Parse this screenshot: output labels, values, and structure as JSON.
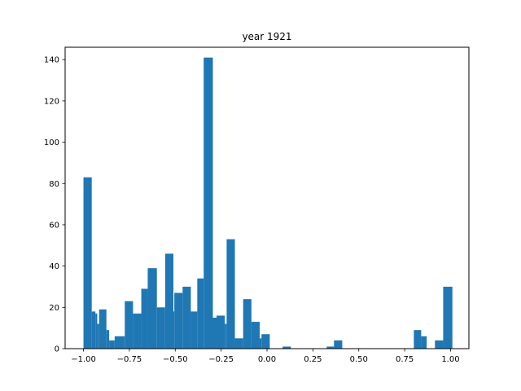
{
  "chart_data": {
    "type": "bar",
    "title": "year 1921",
    "xlabel": "",
    "ylabel": "",
    "xlim": [
      -1.1,
      1.1
    ],
    "ylim": [
      0,
      146
    ],
    "grid": false,
    "bar_color": "#1f77b4",
    "bars": [
      {
        "x0": -1.0,
        "x1": -0.955,
        "value": 83
      },
      {
        "x0": -0.955,
        "x1": -0.935,
        "value": 18
      },
      {
        "x0": -0.935,
        "x1": -0.925,
        "value": 17
      },
      {
        "x0": -0.925,
        "x1": -0.915,
        "value": 12
      },
      {
        "x0": -0.915,
        "x1": -0.875,
        "value": 19
      },
      {
        "x0": -0.875,
        "x1": -0.86,
        "value": 9
      },
      {
        "x0": -0.86,
        "x1": -0.83,
        "value": 4
      },
      {
        "x0": -0.83,
        "x1": -0.785,
        "value": 6
      },
      {
        "x0": -0.785,
        "x1": -0.775,
        "value": 6
      },
      {
        "x0": -0.775,
        "x1": -0.73,
        "value": 23
      },
      {
        "x0": -0.73,
        "x1": -0.685,
        "value": 17
      },
      {
        "x0": -0.685,
        "x1": -0.65,
        "value": 29
      },
      {
        "x0": -0.65,
        "x1": -0.6,
        "value": 39
      },
      {
        "x0": -0.6,
        "x1": -0.555,
        "value": 20
      },
      {
        "x0": -0.555,
        "x1": -0.51,
        "value": 46
      },
      {
        "x0": -0.51,
        "x1": -0.505,
        "value": 18
      },
      {
        "x0": -0.505,
        "x1": -0.46,
        "value": 27
      },
      {
        "x0": -0.46,
        "x1": -0.415,
        "value": 30
      },
      {
        "x0": -0.415,
        "x1": -0.38,
        "value": 18
      },
      {
        "x0": -0.38,
        "x1": -0.345,
        "value": 34
      },
      {
        "x0": -0.345,
        "x1": -0.295,
        "value": 141
      },
      {
        "x0": -0.295,
        "x1": -0.275,
        "value": 15
      },
      {
        "x0": -0.275,
        "x1": -0.23,
        "value": 16
      },
      {
        "x0": -0.23,
        "x1": -0.22,
        "value": 12
      },
      {
        "x0": -0.22,
        "x1": -0.175,
        "value": 53
      },
      {
        "x0": -0.175,
        "x1": -0.13,
        "value": 5
      },
      {
        "x0": -0.13,
        "x1": -0.085,
        "value": 24
      },
      {
        "x0": -0.085,
        "x1": -0.04,
        "value": 13
      },
      {
        "x0": -0.04,
        "x1": -0.03,
        "value": 5
      },
      {
        "x0": -0.03,
        "x1": 0.015,
        "value": 7
      },
      {
        "x0": 0.085,
        "x1": 0.13,
        "value": 1
      },
      {
        "x0": 0.325,
        "x1": 0.365,
        "value": 1
      },
      {
        "x0": 0.365,
        "x1": 0.41,
        "value": 4
      },
      {
        "x0": 0.8,
        "x1": 0.84,
        "value": 9
      },
      {
        "x0": 0.84,
        "x1": 0.87,
        "value": 6
      },
      {
        "x0": 0.915,
        "x1": 0.96,
        "value": 4
      },
      {
        "x0": 0.96,
        "x1": 1.01,
        "value": 30
      }
    ],
    "x_ticks": [
      -1.0,
      -0.75,
      -0.5,
      -0.25,
      0.0,
      0.25,
      0.5,
      0.75,
      1.0
    ],
    "x_tick_labels": [
      "−1.00",
      "−0.75",
      "−0.50",
      "−0.25",
      "0.00",
      "0.25",
      "0.50",
      "0.75",
      "1.00"
    ],
    "y_ticks": [
      0,
      20,
      40,
      60,
      80,
      100,
      120,
      140
    ],
    "y_tick_labels": [
      "0",
      "20",
      "40",
      "60",
      "80",
      "100",
      "120",
      "140"
    ]
  }
}
